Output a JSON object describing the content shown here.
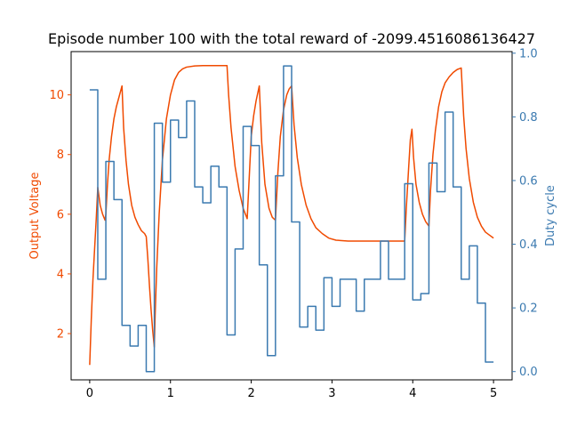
{
  "chart_data": {
    "type": "line",
    "title": "Episode number 100 with the total reward of -2099.4516086136427",
    "xlabel": "",
    "ylabel_left": "Output Voltage",
    "ylabel_right": "Duty cycle",
    "xlim": [
      -0.23,
      5.23
    ],
    "ylim_left": [
      0.45,
      11.45
    ],
    "ylim_right": [
      -0.026,
      1.005
    ],
    "x_ticks": [
      0,
      1,
      2,
      3,
      4,
      5
    ],
    "y_left_ticks": [
      2,
      4,
      6,
      8,
      10
    ],
    "y_right_ticks": [
      0.0,
      0.2,
      0.4,
      0.6,
      0.8,
      1.0
    ],
    "grid": false,
    "colors": {
      "left": "#f04a00",
      "right": "#3b7ab0",
      "axis": "#000000"
    },
    "series": [
      {
        "axis": "left",
        "kind": "line",
        "points": [
          [
            0.0,
            0.95
          ],
          [
            0.02,
            2.5
          ],
          [
            0.04,
            3.8
          ],
          [
            0.06,
            4.8
          ],
          [
            0.08,
            5.8
          ],
          [
            0.1,
            6.9
          ],
          [
            0.13,
            6.3
          ],
          [
            0.16,
            6.0
          ],
          [
            0.19,
            5.8
          ],
          [
            0.2,
            6.0
          ],
          [
            0.22,
            7.0
          ],
          [
            0.24,
            7.8
          ],
          [
            0.27,
            8.6
          ],
          [
            0.3,
            9.2
          ],
          [
            0.33,
            9.6
          ],
          [
            0.36,
            9.9
          ],
          [
            0.38,
            10.1
          ],
          [
            0.4,
            10.3
          ],
          [
            0.42,
            8.9
          ],
          [
            0.45,
            7.8
          ],
          [
            0.48,
            7.0
          ],
          [
            0.52,
            6.3
          ],
          [
            0.56,
            5.9
          ],
          [
            0.6,
            5.65
          ],
          [
            0.64,
            5.45
          ],
          [
            0.68,
            5.35
          ],
          [
            0.7,
            5.25
          ],
          [
            0.72,
            4.5
          ],
          [
            0.74,
            3.6
          ],
          [
            0.76,
            2.8
          ],
          [
            0.78,
            2.1
          ],
          [
            0.8,
            1.55
          ],
          [
            0.81,
            2.6
          ],
          [
            0.83,
            4.2
          ],
          [
            0.86,
            6.0
          ],
          [
            0.9,
            7.8
          ],
          [
            0.95,
            9.2
          ],
          [
            1.0,
            10.0
          ],
          [
            1.05,
            10.5
          ],
          [
            1.1,
            10.75
          ],
          [
            1.15,
            10.87
          ],
          [
            1.2,
            10.93
          ],
          [
            1.3,
            10.97
          ],
          [
            1.4,
            10.98
          ],
          [
            1.5,
            10.98
          ],
          [
            1.6,
            10.98
          ],
          [
            1.7,
            10.98
          ],
          [
            1.72,
            10.0
          ],
          [
            1.75,
            8.9
          ],
          [
            1.8,
            7.6
          ],
          [
            1.85,
            6.8
          ],
          [
            1.9,
            6.2
          ],
          [
            1.95,
            5.85
          ],
          [
            2.0,
            8.6
          ],
          [
            2.03,
            9.3
          ],
          [
            2.06,
            9.8
          ],
          [
            2.1,
            10.3
          ],
          [
            2.13,
            8.4
          ],
          [
            2.17,
            7.0
          ],
          [
            2.22,
            6.2
          ],
          [
            2.26,
            5.9
          ],
          [
            2.3,
            5.8
          ],
          [
            2.33,
            7.4
          ],
          [
            2.36,
            8.6
          ],
          [
            2.4,
            9.5
          ],
          [
            2.44,
            10.0
          ],
          [
            2.47,
            10.2
          ],
          [
            2.5,
            10.3
          ],
          [
            2.53,
            9.0
          ],
          [
            2.57,
            7.9
          ],
          [
            2.62,
            7.0
          ],
          [
            2.68,
            6.3
          ],
          [
            2.74,
            5.85
          ],
          [
            2.8,
            5.55
          ],
          [
            2.88,
            5.35
          ],
          [
            2.96,
            5.2
          ],
          [
            3.05,
            5.13
          ],
          [
            3.2,
            5.1
          ],
          [
            3.4,
            5.1
          ],
          [
            3.6,
            5.1
          ],
          [
            3.8,
            5.1
          ],
          [
            3.9,
            5.1
          ],
          [
            3.92,
            6.2
          ],
          [
            3.95,
            7.6
          ],
          [
            3.97,
            8.5
          ],
          [
            3.99,
            8.85
          ],
          [
            4.01,
            7.9
          ],
          [
            4.04,
            7.0
          ],
          [
            4.08,
            6.4
          ],
          [
            4.12,
            6.0
          ],
          [
            4.16,
            5.75
          ],
          [
            4.2,
            5.6
          ],
          [
            4.22,
            6.8
          ],
          [
            4.25,
            8.0
          ],
          [
            4.28,
            8.8
          ],
          [
            4.32,
            9.6
          ],
          [
            4.36,
            10.1
          ],
          [
            4.4,
            10.4
          ],
          [
            4.45,
            10.6
          ],
          [
            4.5,
            10.75
          ],
          [
            4.55,
            10.85
          ],
          [
            4.6,
            10.9
          ],
          [
            4.63,
            9.3
          ],
          [
            4.66,
            8.2
          ],
          [
            4.7,
            7.2
          ],
          [
            4.75,
            6.4
          ],
          [
            4.8,
            5.9
          ],
          [
            4.85,
            5.6
          ],
          [
            4.9,
            5.4
          ],
          [
            4.95,
            5.3
          ],
          [
            5.0,
            5.2
          ]
        ]
      },
      {
        "axis": "right",
        "kind": "step",
        "points": [
          [
            0.0,
            0.885
          ],
          [
            0.1,
            0.29
          ],
          [
            0.2,
            0.66
          ],
          [
            0.3,
            0.54
          ],
          [
            0.4,
            0.145
          ],
          [
            0.5,
            0.08
          ],
          [
            0.6,
            0.145
          ],
          [
            0.7,
            0.0
          ],
          [
            0.8,
            0.78
          ],
          [
            0.9,
            0.595
          ],
          [
            1.0,
            0.79
          ],
          [
            1.1,
            0.735
          ],
          [
            1.2,
            0.85
          ],
          [
            1.3,
            0.58
          ],
          [
            1.4,
            0.53
          ],
          [
            1.5,
            0.645
          ],
          [
            1.6,
            0.58
          ],
          [
            1.7,
            0.115
          ],
          [
            1.8,
            0.385
          ],
          [
            1.9,
            0.77
          ],
          [
            2.0,
            0.71
          ],
          [
            2.1,
            0.335
          ],
          [
            2.2,
            0.05
          ],
          [
            2.3,
            0.615
          ],
          [
            2.4,
            0.96
          ],
          [
            2.5,
            0.47
          ],
          [
            2.6,
            0.14
          ],
          [
            2.7,
            0.205
          ],
          [
            2.8,
            0.13
          ],
          [
            2.9,
            0.295
          ],
          [
            3.0,
            0.205
          ],
          [
            3.1,
            0.29
          ],
          [
            3.2,
            0.29
          ],
          [
            3.3,
            0.19
          ],
          [
            3.4,
            0.29
          ],
          [
            3.5,
            0.29
          ],
          [
            3.6,
            0.41
          ],
          [
            3.7,
            0.29
          ],
          [
            3.8,
            0.29
          ],
          [
            3.9,
            0.59
          ],
          [
            4.0,
            0.225
          ],
          [
            4.1,
            0.245
          ],
          [
            4.2,
            0.655
          ],
          [
            4.3,
            0.565
          ],
          [
            4.4,
            0.815
          ],
          [
            4.5,
            0.58
          ],
          [
            4.6,
            0.29
          ],
          [
            4.7,
            0.395
          ],
          [
            4.8,
            0.215
          ],
          [
            4.9,
            0.03
          ],
          [
            5.0,
            0.03
          ]
        ]
      }
    ]
  }
}
